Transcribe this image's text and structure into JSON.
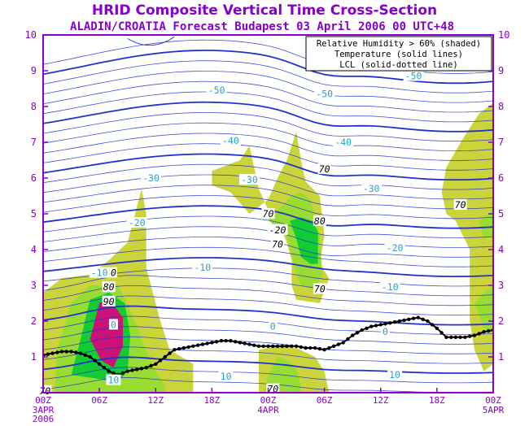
{
  "chart_data": {
    "type": "contour",
    "title": "HRID Composite Vertical Time Cross-Section",
    "subtitle": "ALADIN/CROATIA Forecast Budapest 03 April 2006 00 UTC+48",
    "legend": [
      "Relative Humidity > 60% (shaded)",
      "Temperature (solid lines)",
      "LCL (solid-dotted line)"
    ],
    "legend_position": "top-right",
    "x_ticks": [
      {
        "label": "00Z",
        "sub": [
          "3APR",
          "2006"
        ],
        "hours": 0
      },
      {
        "label": "06Z",
        "sub": [],
        "hours": 6
      },
      {
        "label": "12Z",
        "sub": [],
        "hours": 12
      },
      {
        "label": "18Z",
        "sub": [],
        "hours": 18
      },
      {
        "label": "00Z",
        "sub": [
          "4APR"
        ],
        "hours": 24
      },
      {
        "label": "06Z",
        "sub": [],
        "hours": 30
      },
      {
        "label": "12Z",
        "sub": [],
        "hours": 36
      },
      {
        "label": "18Z",
        "sub": [],
        "hours": 42
      },
      {
        "label": "00Z",
        "sub": [
          "5APR"
        ],
        "hours": 48
      }
    ],
    "xlim": [
      0,
      48
    ],
    "y_ticks": [
      "1",
      "2",
      "3",
      "4",
      "5",
      "6",
      "7",
      "8",
      "9",
      "10"
    ],
    "ylim": [
      0,
      10
    ],
    "temperature_labels": [
      {
        "text": "-50",
        "x": 18.5,
        "y": 8.45
      },
      {
        "text": "-50",
        "x": 30.0,
        "y": 8.35
      },
      {
        "text": "-50",
        "x": 39.5,
        "y": 8.85
      },
      {
        "text": "-40",
        "x": 20.0,
        "y": 7.05
      },
      {
        "text": "-40",
        "x": 32.0,
        "y": 7.0
      },
      {
        "text": "-30",
        "x": 11.5,
        "y": 6.0
      },
      {
        "text": "-30",
        "x": 22.0,
        "y": 5.95
      },
      {
        "text": "-30",
        "x": 35.0,
        "y": 5.7
      },
      {
        "text": "-20",
        "x": 10.0,
        "y": 4.75
      },
      {
        "text": "-20",
        "x": 25.0,
        "y": 4.55
      },
      {
        "text": "-20",
        "x": 37.5,
        "y": 4.05
      },
      {
        "text": "-10",
        "x": 6.0,
        "y": 3.35
      },
      {
        "text": "-10",
        "x": 17.0,
        "y": 3.5
      },
      {
        "text": "-10",
        "x": 37.0,
        "y": 2.95
      },
      {
        "text": "0",
        "x": 7.5,
        "y": 1.9
      },
      {
        "text": "0",
        "x": 24.5,
        "y": 1.85
      },
      {
        "text": "0",
        "x": 36.5,
        "y": 1.7
      },
      {
        "text": "10",
        "x": 7.5,
        "y": 0.35
      },
      {
        "text": "10",
        "x": 19.5,
        "y": 0.45
      },
      {
        "text": "10",
        "x": 37.5,
        "y": 0.5
      }
    ],
    "rh_labels": [
      {
        "text": "0",
        "x": 7.5,
        "y": 3.35
      },
      {
        "text": "80",
        "x": 7.0,
        "y": 2.95
      },
      {
        "text": "90",
        "x": 7.0,
        "y": 2.55
      },
      {
        "text": "70",
        "x": 24.0,
        "y": 5.0
      },
      {
        "text": "-20",
        "x": 25.0,
        "y": 4.55
      },
      {
        "text": "70",
        "x": 25.0,
        "y": 4.15
      },
      {
        "text": "70",
        "x": 30.0,
        "y": 6.25
      },
      {
        "text": "80",
        "x": 29.5,
        "y": 4.8
      },
      {
        "text": "70",
        "x": 29.5,
        "y": 2.9
      },
      {
        "text": "70",
        "x": 44.5,
        "y": 5.25
      },
      {
        "text": "70",
        "x": 24.5,
        "y": 0.1
      },
      {
        "text": "70",
        "x": 0.2,
        "y": 0.05
      }
    ],
    "lcl": {
      "x": [
        0,
        1,
        2,
        3,
        4,
        5,
        6,
        7,
        8,
        9,
        10,
        11,
        12,
        13,
        14,
        15,
        16,
        17,
        18,
        19,
        20,
        21,
        22,
        23,
        24,
        25,
        26,
        27,
        28,
        29,
        30,
        31,
        32,
        33,
        34,
        35,
        36,
        37,
        38,
        39,
        40,
        41,
        42,
        43,
        44,
        45,
        46,
        47,
        48
      ],
      "y": [
        1.05,
        1.1,
        1.15,
        1.15,
        1.1,
        1.0,
        0.8,
        0.6,
        0.5,
        0.6,
        0.65,
        0.7,
        0.8,
        1.0,
        1.2,
        1.25,
        1.3,
        1.35,
        1.4,
        1.45,
        1.45,
        1.4,
        1.35,
        1.3,
        1.3,
        1.3,
        1.3,
        1.3,
        1.25,
        1.25,
        1.2,
        1.3,
        1.4,
        1.6,
        1.75,
        1.85,
        1.9,
        1.95,
        2.0,
        2.05,
        2.1,
        2.0,
        1.8,
        1.55,
        1.55,
        1.55,
        1.6,
        1.7,
        1.75
      ]
    },
    "colors": {
      "frame": "#8800cc",
      "title": "#8800cc",
      "temperature": "#2233cc",
      "temperature_label": "#2aa0c8",
      "lcl": "#000000",
      "rh60": "#ccd43c",
      "rh70": "#99dd33",
      "rh80": "#11cc33",
      "rh90": "#cc1177"
    }
  }
}
